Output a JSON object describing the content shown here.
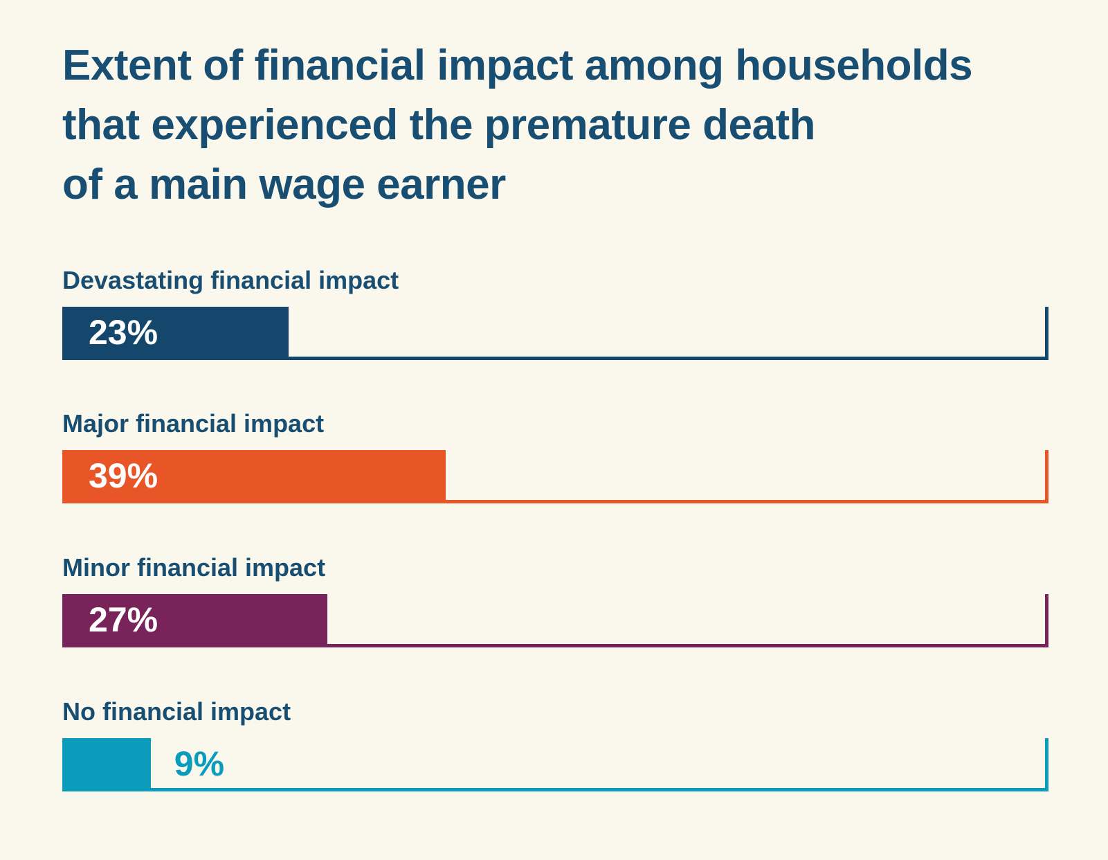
{
  "page": {
    "background_color": "#FAF8ED",
    "text_color": "#194E73"
  },
  "title": {
    "text": "Extent of financial impact among households that experienced the premature death of a main wage earner",
    "lines": [
      "Extent of financial impact among households",
      "that experienced the premature death",
      "of a main wage earner"
    ],
    "color": "#194E73"
  },
  "chart_data": {
    "type": "bar",
    "orientation": "horizontal",
    "title": "Extent of financial impact among households that experienced the premature death of a main wage earner",
    "categories": [
      "Devastating financial impact",
      "Major financial impact",
      "Minor financial impact",
      "No financial impact"
    ],
    "values": [
      23,
      39,
      27,
      9
    ],
    "value_labels": [
      "23%",
      "39%",
      "27%",
      "9%"
    ],
    "bar_colors": [
      "#14476B",
      "#E85526",
      "#78245A",
      "#0C9CBB"
    ],
    "xlim": [
      0,
      100
    ],
    "grid": false,
    "legend": false,
    "axis_ticks": false,
    "value_label_placement": [
      "inside",
      "inside",
      "inside",
      "outside"
    ],
    "track_style": "bottom-and-right-border-in-bar-color"
  },
  "rows": [
    {
      "label": "Devastating financial impact",
      "value": 23,
      "value_label": "23%",
      "color": "#14476B",
      "label_inside": true
    },
    {
      "label": "Major financial impact",
      "value": 39,
      "value_label": "39%",
      "color": "#E85526",
      "label_inside": true
    },
    {
      "label": "Minor financial impact",
      "value": 27,
      "value_label": "27%",
      "color": "#78245A",
      "label_inside": true
    },
    {
      "label": "No financial impact",
      "value": 9,
      "value_label": "9%",
      "color": "#0C9CBB",
      "label_inside": false
    }
  ]
}
